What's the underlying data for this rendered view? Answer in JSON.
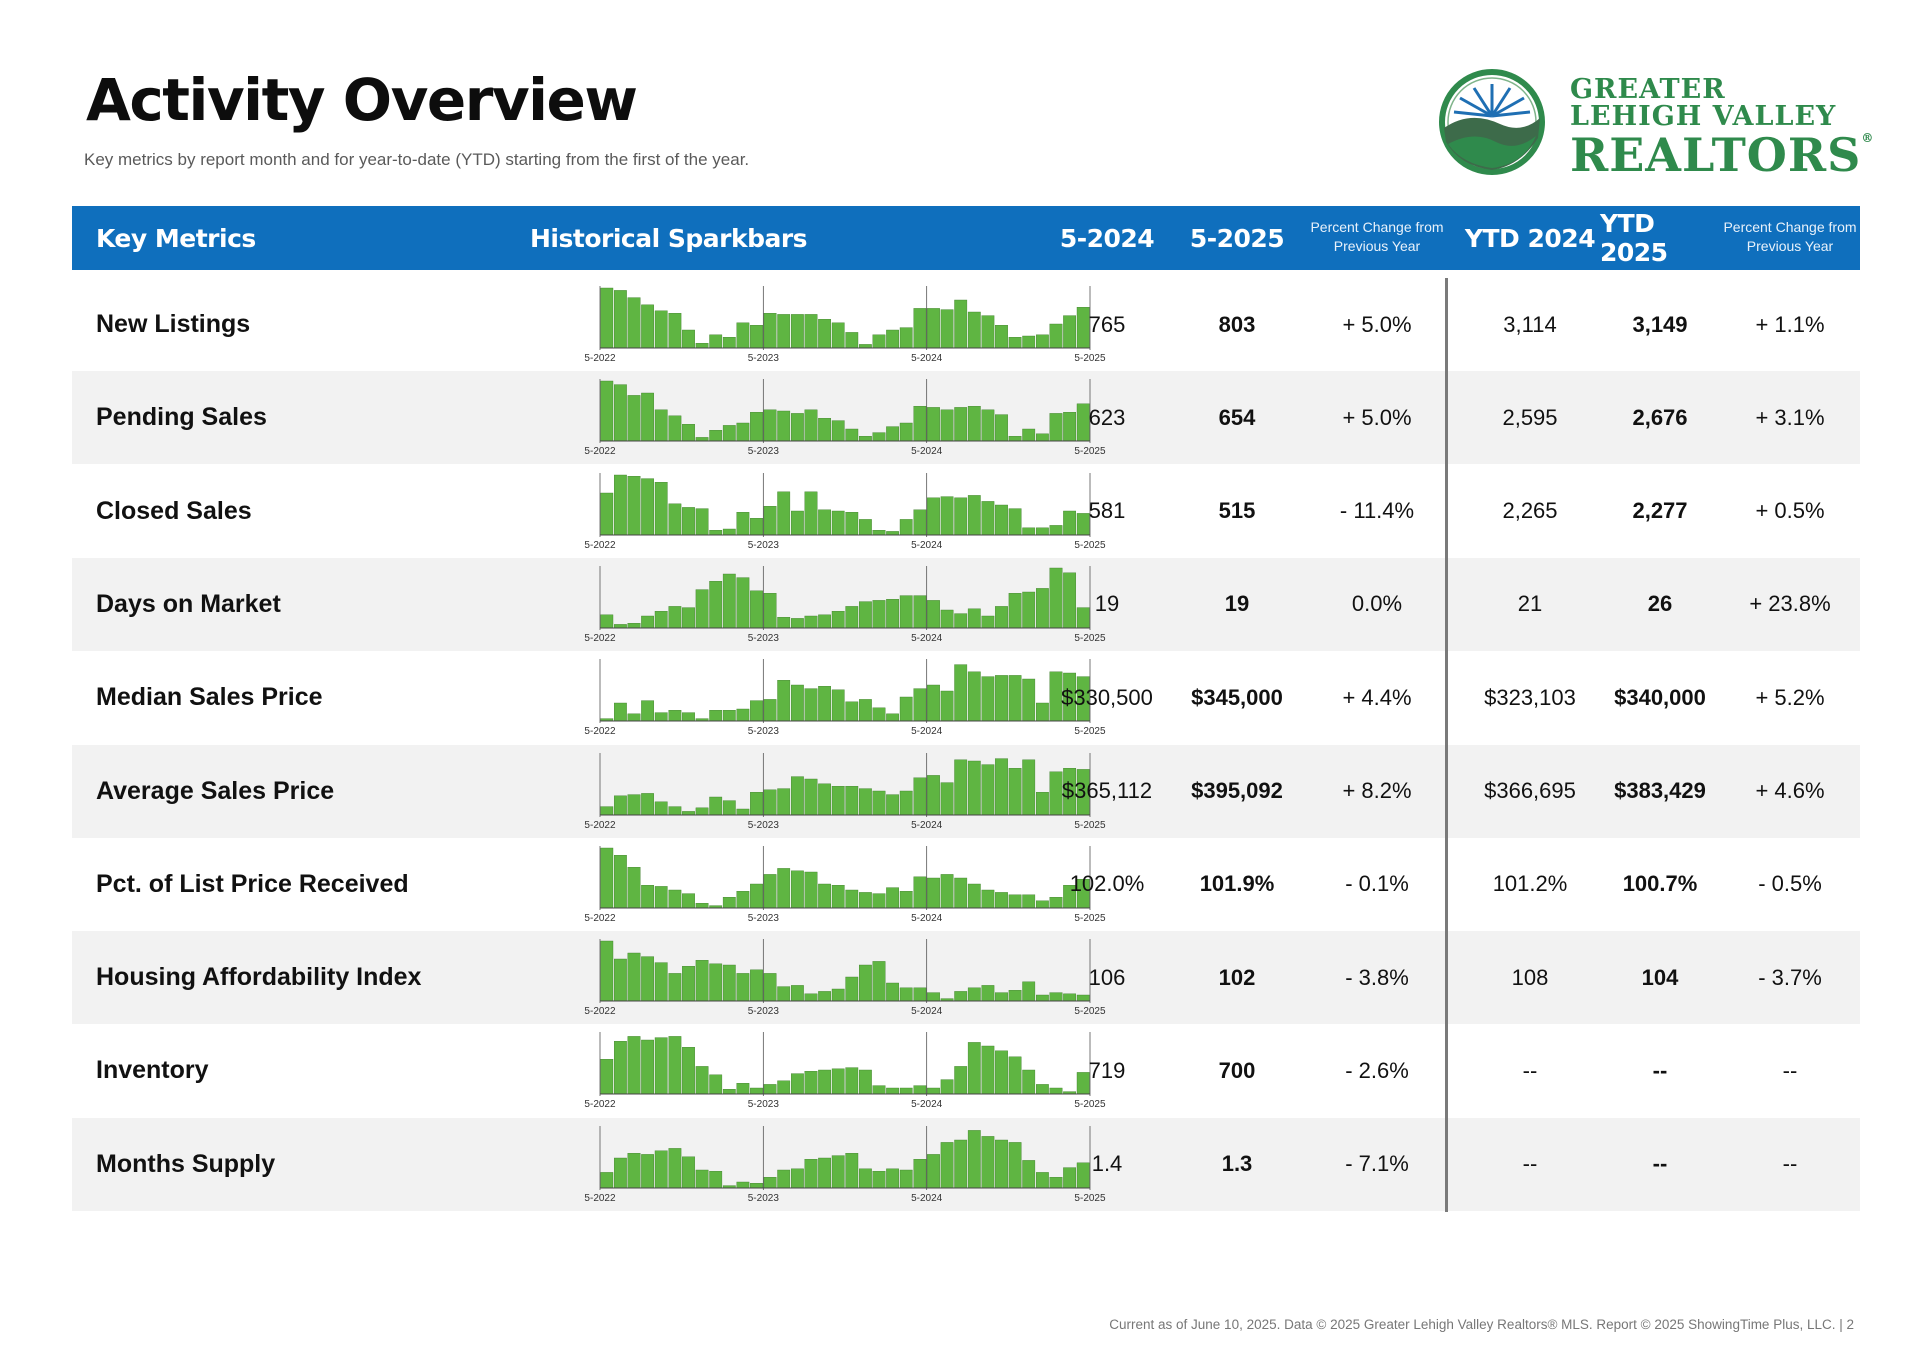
{
  "page": {
    "title": "Activity Overview",
    "subtitle": "Key metrics by report month and for year-to-date (YTD) starting from the first of the year.",
    "footer": "Current as of June 10, 2025. Data © 2025 Greater Lehigh Valley Realtors® MLS. Report © 2025 ShowingTime Plus, LLC.  |  2"
  },
  "logo": {
    "line1": "GREATER",
    "line2": "LEHIGH VALLEY",
    "line3": "REALTORS",
    "reg": "®",
    "colors": {
      "green": "#2f8a4c",
      "dark_green": "#3d6b4a",
      "sun": "#1f6fb3"
    }
  },
  "colors": {
    "header_bg": "#0f6fbd",
    "bar": "#5fb542",
    "bar_outline": "#3f7f2c",
    "row_shade": "#f2f2f2"
  },
  "header": {
    "key_metrics": "Key Metrics",
    "sparkbars": "Historical Sparkbars",
    "col_prev": "5-2024",
    "col_curr": "5-2025",
    "pct_change": "Percent Change from Previous Year",
    "ytd_prev": "YTD 2024",
    "ytd_curr": "YTD 2025",
    "pct_change_ytd": "Percent Change from Previous Year"
  },
  "spark_labels": [
    "5-2022",
    "5-2023",
    "5-2024",
    "5-2025"
  ],
  "rows": [
    {
      "metric": "New Listings",
      "prev": "765",
      "curr": "803",
      "pct": "+ 5.0%",
      "ytd_prev": "3,114",
      "ytd_curr": "3,149",
      "ytd_pct": "+ 1.1%",
      "bars": [
        100,
        96,
        84,
        72,
        62,
        58,
        30,
        8,
        22,
        18,
        42,
        38,
        58,
        56,
        56,
        56,
        48,
        42,
        26,
        6,
        22,
        30,
        34,
        66,
        66,
        64,
        80,
        60,
        54,
        38,
        18,
        20,
        22,
        40,
        54,
        68
      ]
    },
    {
      "metric": "Pending Sales",
      "prev": "623",
      "curr": "654",
      "pct": "+ 5.0%",
      "ytd_prev": "2,595",
      "ytd_curr": "2,676",
      "ytd_pct": "+ 3.1%",
      "bars": [
        100,
        94,
        76,
        80,
        52,
        42,
        28,
        6,
        18,
        26,
        30,
        48,
        52,
        50,
        46,
        52,
        38,
        34,
        20,
        8,
        14,
        24,
        30,
        58,
        56,
        52,
        56,
        58,
        52,
        44,
        8,
        20,
        12,
        46,
        48,
        62
      ]
    },
    {
      "metric": "Closed Sales",
      "prev": "581",
      "curr": "515",
      "pct": "- 11.4%",
      "ytd_prev": "2,265",
      "ytd_curr": "2,277",
      "ytd_pct": "+ 0.5%",
      "bars": [
        70,
        100,
        98,
        94,
        88,
        52,
        46,
        44,
        8,
        10,
        38,
        28,
        48,
        72,
        40,
        72,
        42,
        40,
        38,
        26,
        8,
        6,
        26,
        42,
        62,
        64,
        62,
        66,
        56,
        50,
        44,
        12,
        12,
        16,
        40,
        36
      ]
    },
    {
      "metric": "Days on Market",
      "prev": "19",
      "curr": "19",
      "pct": "0.0%",
      "ytd_prev": "21",
      "ytd_curr": "26",
      "ytd_pct": "+ 23.8%",
      "bars": [
        22,
        6,
        8,
        20,
        28,
        36,
        34,
        64,
        78,
        90,
        84,
        62,
        58,
        18,
        16,
        20,
        22,
        28,
        36,
        44,
        46,
        48,
        54,
        54,
        46,
        30,
        24,
        32,
        20,
        36,
        58,
        60,
        66,
        100,
        92,
        34
      ]
    },
    {
      "metric": "Median Sales Price",
      "prev": "$330,500",
      "curr": "$345,000",
      "pct": "+ 4.4%",
      "ytd_prev": "$323,103",
      "ytd_curr": "$340,000",
      "ytd_pct": "+ 5.2%",
      "bars": [
        4,
        30,
        12,
        34,
        14,
        18,
        14,
        4,
        18,
        18,
        20,
        34,
        36,
        68,
        60,
        54,
        58,
        52,
        32,
        36,
        22,
        12,
        40,
        54,
        60,
        50,
        94,
        82,
        74,
        76,
        76,
        70,
        30,
        82,
        80,
        74
      ]
    },
    {
      "metric": "Average Sales Price",
      "prev": "$365,112",
      "curr": "$395,092",
      "pct": "+ 8.2%",
      "ytd_prev": "$366,695",
      "ytd_curr": "$383,429",
      "ytd_pct": "+ 4.6%",
      "bars": [
        14,
        32,
        34,
        36,
        22,
        14,
        6,
        12,
        30,
        24,
        10,
        38,
        42,
        44,
        64,
        60,
        52,
        48,
        48,
        44,
        40,
        34,
        40,
        62,
        66,
        54,
        92,
        90,
        84,
        94,
        78,
        92,
        38,
        72,
        78,
        76
      ]
    },
    {
      "metric": "Pct. of List Price Received",
      "prev": "102.0%",
      "curr": "101.9%",
      "pct": "- 0.1%",
      "ytd_prev": "101.2%",
      "ytd_curr": "100.7%",
      "ytd_pct": "- 0.5%",
      "bars": [
        100,
        88,
        68,
        38,
        36,
        30,
        24,
        8,
        4,
        18,
        28,
        40,
        56,
        66,
        62,
        60,
        40,
        38,
        30,
        26,
        24,
        34,
        28,
        52,
        50,
        56,
        50,
        40,
        30,
        26,
        22,
        22,
        12,
        18,
        38,
        48
      ]
    },
    {
      "metric": "Housing Affordability Index",
      "prev": "106",
      "curr": "102",
      "pct": "- 3.8%",
      "ytd_prev": "108",
      "ytd_curr": "104",
      "ytd_pct": "- 3.7%",
      "bars": [
        100,
        70,
        80,
        74,
        64,
        46,
        58,
        68,
        62,
        60,
        46,
        52,
        46,
        24,
        26,
        12,
        16,
        20,
        40,
        60,
        66,
        30,
        22,
        22,
        14,
        4,
        16,
        22,
        26,
        14,
        18,
        32,
        10,
        14,
        12,
        10
      ]
    },
    {
      "metric": "Inventory",
      "prev": "719",
      "curr": "700",
      "pct": "- 2.6%",
      "ytd_prev": "--",
      "ytd_curr": "--",
      "ytd_pct": "--",
      "bars": [
        58,
        88,
        96,
        90,
        94,
        96,
        78,
        46,
        32,
        8,
        18,
        10,
        16,
        22,
        34,
        38,
        40,
        42,
        44,
        40,
        14,
        10,
        10,
        14,
        10,
        24,
        46,
        86,
        80,
        72,
        62,
        40,
        16,
        10,
        4,
        36
      ]
    },
    {
      "metric": "Months Supply",
      "prev": "1.4",
      "curr": "1.3",
      "pct": "- 7.1%",
      "ytd_prev": "--",
      "ytd_curr": "--",
      "ytd_pct": "--",
      "bars": [
        26,
        50,
        58,
        56,
        62,
        66,
        52,
        30,
        28,
        4,
        10,
        8,
        18,
        30,
        32,
        48,
        50,
        54,
        58,
        32,
        28,
        32,
        30,
        48,
        56,
        76,
        80,
        96,
        86,
        80,
        76,
        46,
        26,
        18,
        34,
        42
      ]
    }
  ]
}
